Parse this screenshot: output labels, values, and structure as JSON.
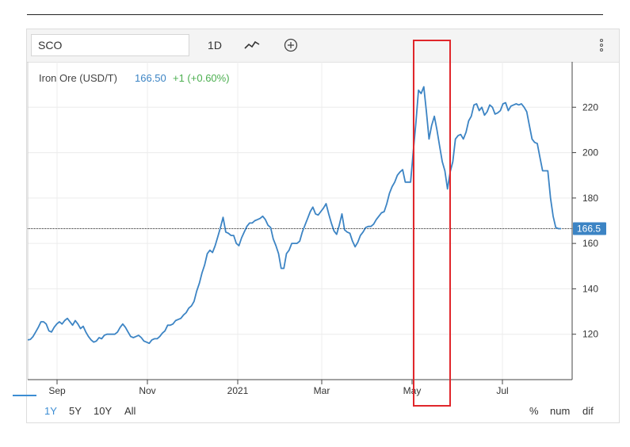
{
  "toolbar": {
    "symbol_value": "SCO",
    "interval_label": "1D",
    "chart_style_icon": "line-chart-icon",
    "add_icon": "plus-circle-icon",
    "menu_icon": "kebab-menu-icon"
  },
  "legend": {
    "name": "Iron Ore (USD/T)",
    "price": "166.50",
    "change": "+1 (+0.60%)"
  },
  "current_price_label": "166.5",
  "colors": {
    "line": "#3c84c4",
    "change_up": "#4caf50",
    "price_label_bg": "#3c84c4",
    "highlight": "#e0262b"
  },
  "range_buttons": [
    "1Y",
    "5Y",
    "10Y",
    "All"
  ],
  "active_range": "1Y",
  "scale_buttons": [
    "%",
    "num",
    "dif"
  ],
  "chart_data": {
    "type": "line",
    "series": [
      {
        "name": "Iron Ore (USD/T)",
        "values": [
          117.5,
          117.7,
          119.0,
          121.0,
          123.0,
          125.5,
          125.5,
          124.5,
          121.5,
          121.0,
          123.0,
          124.5,
          125.5,
          124.5,
          126.0,
          127.0,
          125.5,
          124.0,
          126.0,
          124.5,
          122.5,
          123.5,
          121.0,
          119.0,
          117.5,
          116.5,
          117.0,
          118.5,
          118.0,
          119.5,
          120.0,
          120.0,
          120.0,
          120.0,
          121.0,
          123.0,
          124.5,
          123.0,
          121.0,
          119.0,
          118.5,
          119.0,
          119.5,
          118.5,
          117.0,
          116.5,
          116.0,
          117.5,
          118.0,
          118.0,
          119.0,
          120.5,
          121.5,
          124.0,
          124.0,
          124.5,
          126.0,
          126.5,
          127.0,
          128.5,
          129.5,
          131.5,
          132.5,
          134.5,
          139.0,
          142.5,
          147.0,
          150.5,
          155.5,
          157.0,
          156.0,
          159.0,
          163.0,
          167.0,
          171.5,
          165.0,
          164.5,
          163.5,
          163.5,
          160.0,
          159.0,
          162.5,
          165.0,
          167.5,
          169.0,
          169.0,
          170.0,
          170.5,
          171.0,
          172.0,
          170.5,
          168.0,
          167.0,
          162.0,
          159.0,
          155.5,
          149.0,
          149.0,
          155.5,
          157.0,
          160.0,
          160.0,
          160.0,
          161.0,
          165.0,
          168.0,
          171.0,
          174.0,
          176.0,
          173.0,
          172.5,
          174.0,
          175.5,
          177.5,
          173.0,
          169.0,
          165.5,
          164.0,
          168.0,
          173.0,
          166.0,
          165.0,
          164.5,
          161.0,
          158.5,
          160.5,
          163.5,
          165.0,
          167.0,
          167.5,
          167.5,
          168.5,
          170.5,
          172.0,
          173.5,
          174.0,
          177.5,
          182.0,
          185.0,
          187.0,
          190.0,
          191.5,
          192.5,
          187.0,
          187.0,
          187.0,
          200.0,
          213.0,
          227.5,
          226.0,
          229.0,
          218.0,
          206.0,
          212.0,
          216.0,
          210.0,
          203.0,
          196.0,
          192.0,
          184.0,
          191.5,
          196.0,
          206.0,
          207.5,
          208.0,
          206.0,
          209.0,
          214.0,
          216.0,
          221.0,
          221.5,
          218.5,
          220.0,
          216.5,
          218.0,
          221.0,
          220.0,
          217.0,
          217.5,
          218.5,
          221.5,
          222.0,
          218.5,
          220.5,
          221.0,
          221.5,
          221.0,
          221.5,
          220.0,
          218.0,
          212.0,
          206.0,
          204.5,
          204.0,
          198.0,
          192.0,
          192.0,
          192.0,
          180.0,
          172.0,
          167.0,
          166.5,
          166.5
        ]
      }
    ],
    "x_ticks": [
      "Sep",
      "Nov",
      "2021",
      "Mar",
      "May",
      "Jul"
    ],
    "y_ticks": [
      120,
      140,
      160,
      180,
      200,
      220
    ],
    "ylim": [
      100,
      240
    ],
    "reference_line": 166.5,
    "grid": true
  }
}
